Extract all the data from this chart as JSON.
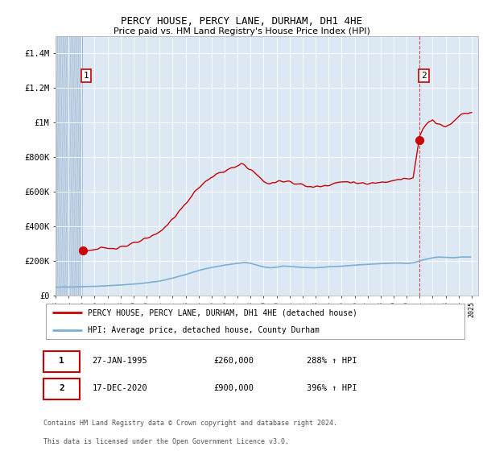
{
  "title": "PERCY HOUSE, PERCY LANE, DURHAM, DH1 4HE",
  "subtitle": "Price paid vs. HM Land Registry's House Price Index (HPI)",
  "legend_line1": "PERCY HOUSE, PERCY LANE, DURHAM, DH1 4HE (detached house)",
  "legend_line2": "HPI: Average price, detached house, County Durham",
  "footer1": "Contains HM Land Registry data © Crown copyright and database right 2024.",
  "footer2": "This data is licensed under the Open Government Licence v3.0.",
  "annotation1_label": "1",
  "annotation1_date": "27-JAN-1995",
  "annotation1_price": "£260,000",
  "annotation1_hpi": "288% ↑ HPI",
  "annotation2_label": "2",
  "annotation2_date": "17-DEC-2020",
  "annotation2_price": "£900,000",
  "annotation2_hpi": "396% ↑ HPI",
  "plot_bg_color": "#dce9f5",
  "hatch_bg_color": "#c8d8ea",
  "red_line_color": "#cc0000",
  "blue_line_color": "#7bafd4",
  "ylim": [
    0,
    1500000
  ],
  "yticks": [
    0,
    200000,
    400000,
    600000,
    800000,
    1000000,
    1200000,
    1400000
  ],
  "ytick_labels": [
    "£0",
    "£200K",
    "£400K",
    "£600K",
    "£800K",
    "£1M",
    "£1.2M",
    "£1.4M"
  ],
  "sale1_x": 1995.08,
  "sale1_y": 260000,
  "sale2_x": 2020.96,
  "sale2_y": 900000,
  "xlim_left": 1993.0,
  "xlim_right": 2025.5
}
